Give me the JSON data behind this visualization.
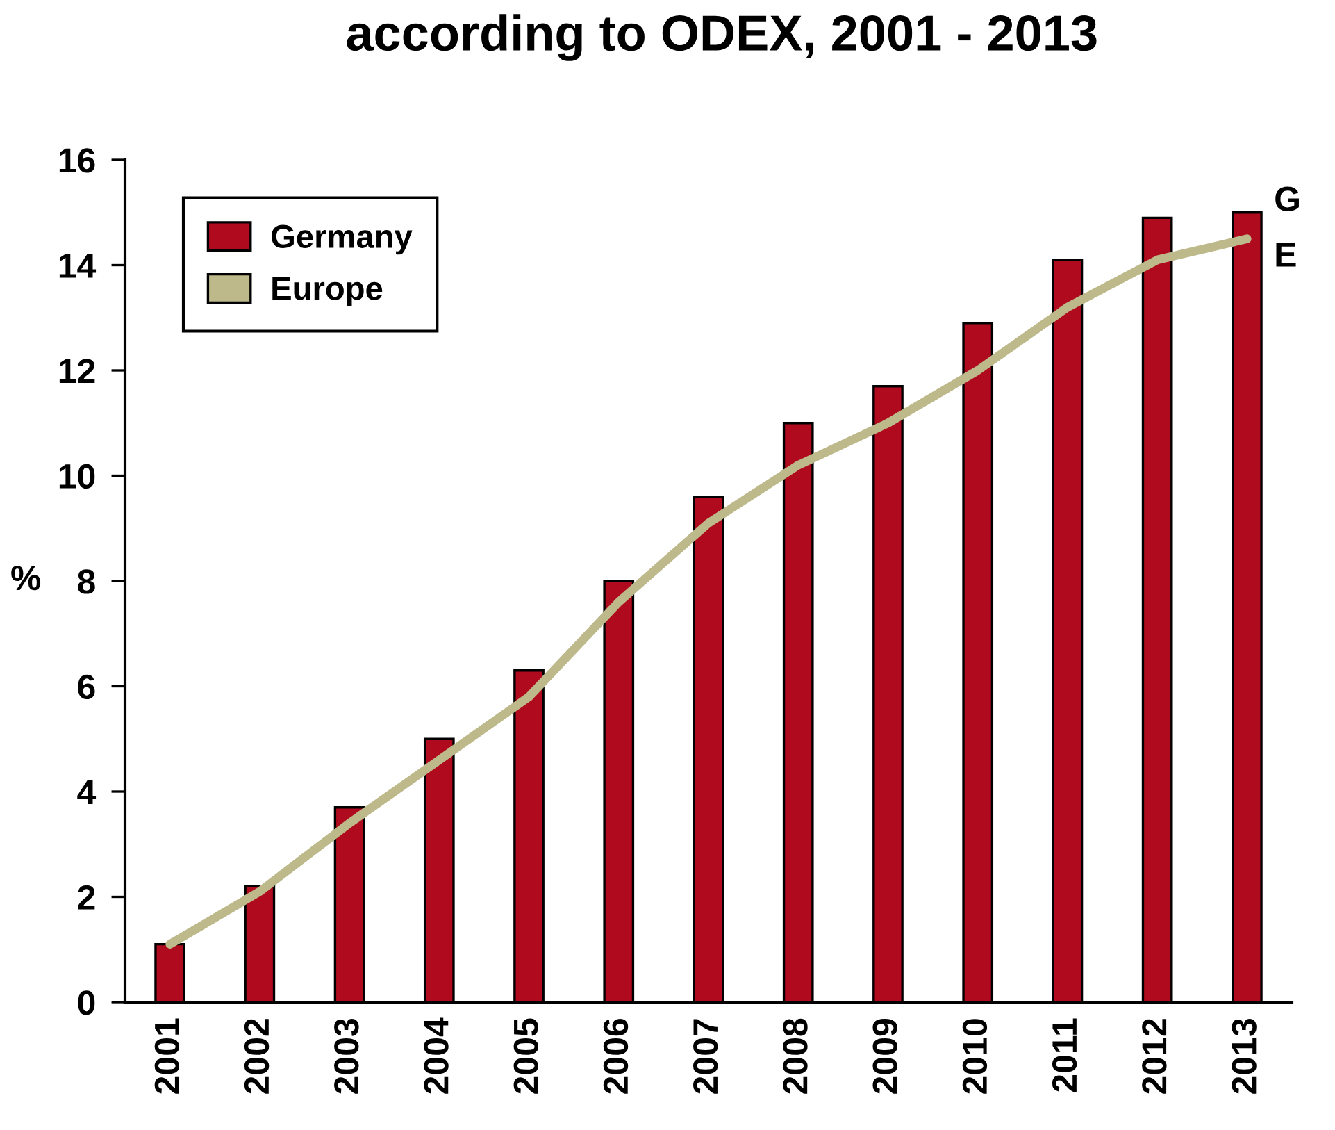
{
  "chart_data": {
    "type": "bar",
    "title": "according to ODEX, 2001 - 2013",
    "ylabel": "%",
    "categories": [
      "2001",
      "2002",
      "2003",
      "2004",
      "2005",
      "2006",
      "2007",
      "2008",
      "2009",
      "2010",
      "2011",
      "2012",
      "2013"
    ],
    "series": [
      {
        "name": "Germany",
        "color": "#b00a1e",
        "values": [
          1.1,
          2.2,
          3.7,
          5.0,
          6.3,
          8.0,
          9.6,
          11.0,
          11.7,
          12.9,
          14.1,
          14.9,
          15.0
        ]
      },
      {
        "name": "Europe",
        "type": "line",
        "color": "#bdb98a",
        "values": [
          1.1,
          2.1,
          3.4,
          4.6,
          5.8,
          7.6,
          9.1,
          10.2,
          11.0,
          12.0,
          13.2,
          14.1,
          14.5
        ]
      }
    ],
    "ylim": [
      0,
      16
    ],
    "yticks": [
      0,
      2,
      4,
      6,
      8,
      10,
      12,
      14,
      16
    ],
    "legend": "top left",
    "grid": false,
    "annotations": [
      "G",
      "E"
    ]
  }
}
